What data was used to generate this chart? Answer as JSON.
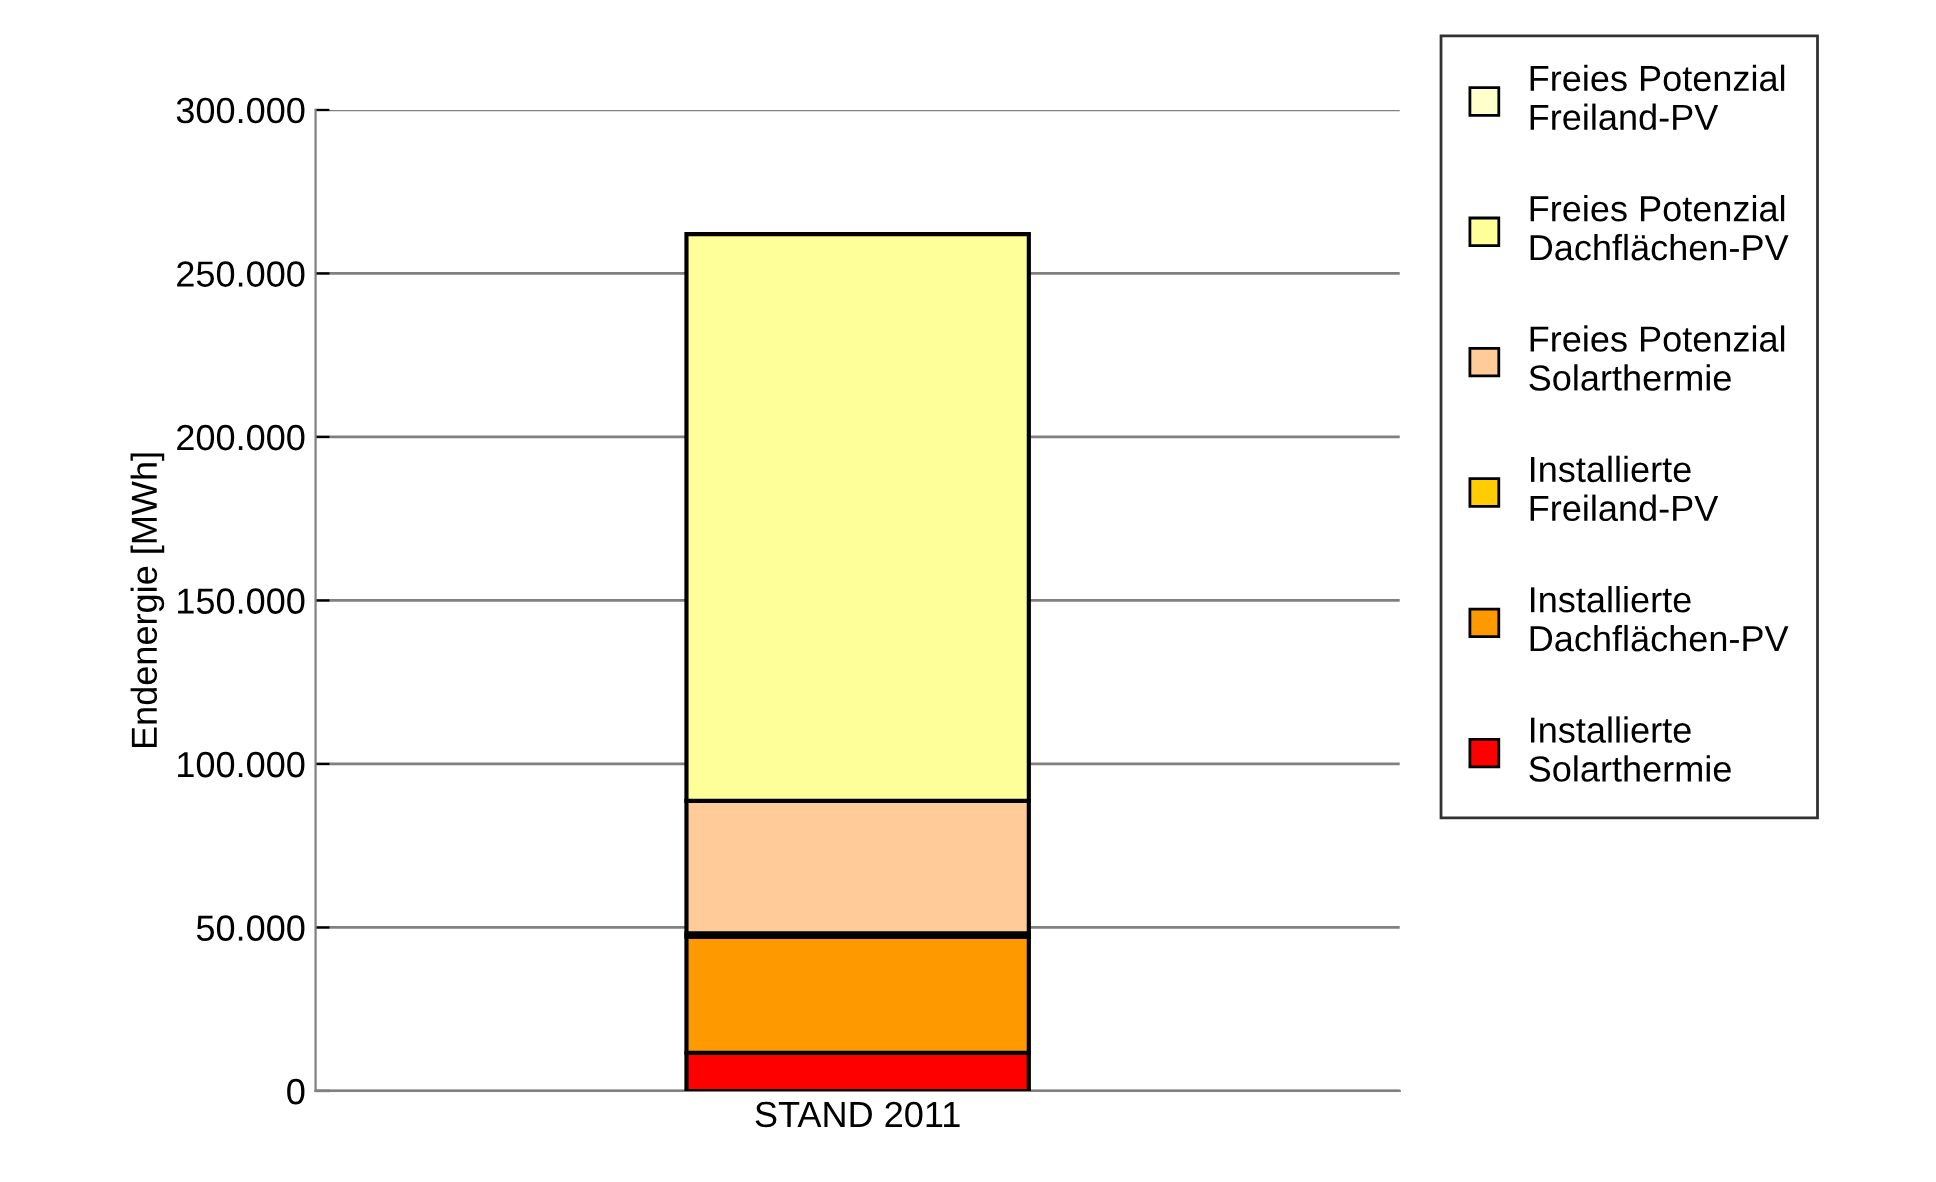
{
  "chart_data": {
    "type": "bar",
    "stacked": true,
    "ylabel": "Endenergie [MWh]",
    "categories": [
      "STAND 2011"
    ],
    "series": [
      {
        "name": "Installierte Solarthermie",
        "color": "#ff0000",
        "values": [
          11700
        ]
      },
      {
        "name": "Installierte Dachflächen-PV",
        "color": "#ff9900",
        "values": [
          35500
        ]
      },
      {
        "name": "Installierte Freiland-PV",
        "color": "#ffcc00",
        "values": [
          1000
        ]
      },
      {
        "name": "Freies Potenzial Solarthermie",
        "color": "#ffcc99",
        "values": [
          40500
        ]
      },
      {
        "name": "Freies Potenzial Dachflächen-PV",
        "color": "#ffff99",
        "values": [
          173300
        ]
      },
      {
        "name": "Freies Potenzial Freiland-PV",
        "color": "#ffffcc",
        "values": [
          0
        ]
      }
    ],
    "ylim": [
      0,
      300000
    ],
    "yticks": [
      {
        "value": 0,
        "label": "0"
      },
      {
        "value": 50000,
        "label": "50.000"
      },
      {
        "value": 100000,
        "label": "100.000"
      },
      {
        "value": 150000,
        "label": "150.000"
      },
      {
        "value": 200000,
        "label": "200.000"
      },
      {
        "value": 250000,
        "label": "250.000"
      },
      {
        "value": 300000,
        "label": "300.000"
      }
    ],
    "grid": "y",
    "legend": "right"
  }
}
